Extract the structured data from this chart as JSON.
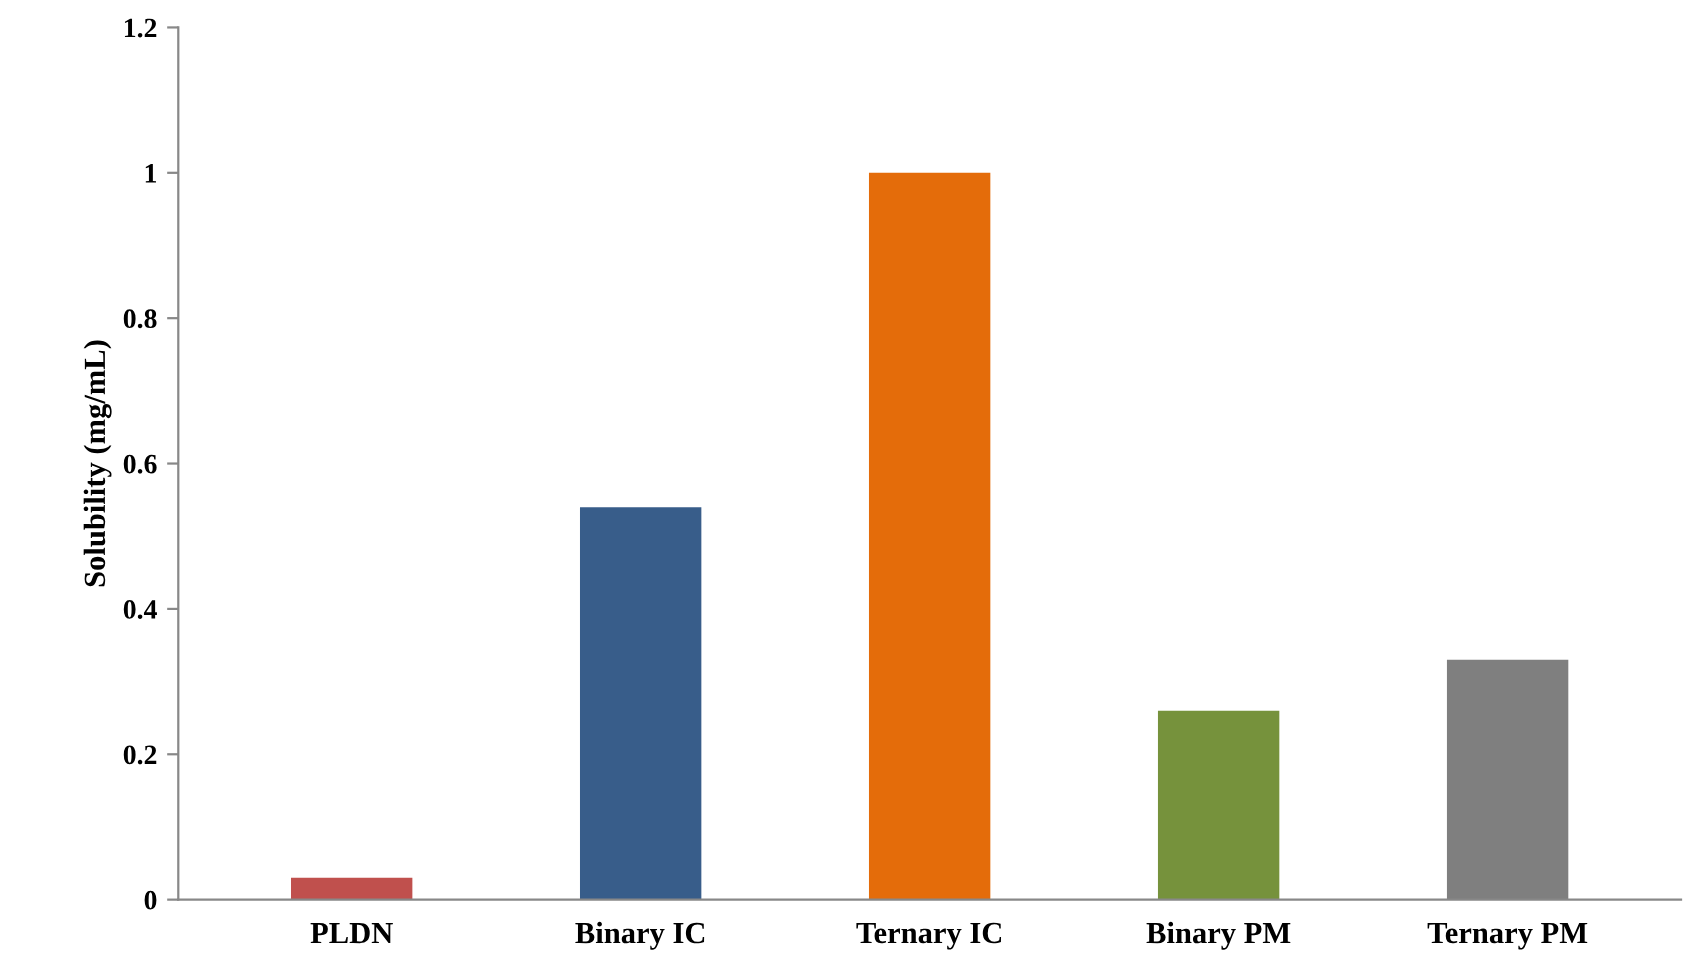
{
  "chart_data": {
    "type": "bar",
    "ylabel": "Solubility (mg/mL)",
    "categories": [
      "PLDN",
      "Binary IC",
      "Ternary IC",
      "Binary PM",
      "Ternary PM"
    ],
    "values": [
      0.03,
      0.54,
      1.0,
      0.26,
      0.33
    ],
    "colors": [
      "#c0504d",
      "#385d8a",
      "#e46c0a",
      "#76923c",
      "#7f7f7f"
    ],
    "ylim": [
      0,
      1.2
    ],
    "yticks": [
      0,
      0.2,
      0.4,
      0.6,
      0.8,
      1,
      1.2
    ],
    "grid": false,
    "legend": false
  }
}
